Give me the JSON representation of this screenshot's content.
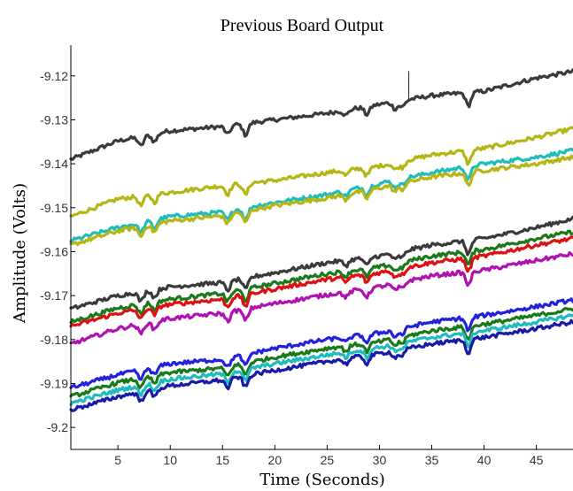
{
  "chart_data": {
    "type": "line",
    "title": "Previous Board Output",
    "xlabel": "Time (Seconds)",
    "ylabel": "Amplitude (Volts)",
    "xlim": [
      0.5,
      48.5
    ],
    "ylim": [
      -9.205,
      -9.113
    ],
    "xticks": [
      5,
      10,
      15,
      20,
      25,
      30,
      35,
      40,
      45
    ],
    "xtick_labels": [
      "5",
      "10",
      "15",
      "20",
      "25",
      "30",
      "35",
      "40",
      "45"
    ],
    "yticks": [
      -9.12,
      -9.13,
      -9.14,
      -9.15,
      -9.16,
      -9.17,
      -9.18,
      -9.19,
      -9.2
    ],
    "ytick_labels": [
      "-9.12",
      "-9.13",
      "-9.14",
      "-9.15",
      "-9.16",
      "-9.17",
      "-9.18",
      "-9.19",
      "-9.2"
    ],
    "grid": false,
    "legend": "none",
    "x": [
      0.5,
      5,
      10,
      15,
      20,
      25,
      30,
      35,
      40,
      45,
      48.5
    ],
    "series": [
      {
        "color": "#3a3a3a",
        "values": [
          -9.139,
          -9.1348,
          -9.1325,
          -9.1315,
          -9.13,
          -9.1285,
          -9.1265,
          -9.1245,
          -9.1235,
          -9.1205,
          -9.119
        ]
      },
      {
        "color": "#b5b514",
        "values": [
          -9.152,
          -9.148,
          -9.1465,
          -9.145,
          -9.1438,
          -9.142,
          -9.1405,
          -9.138,
          -9.1365,
          -9.134,
          -9.132
        ]
      },
      {
        "color": "#1fbcbc",
        "values": [
          -9.1575,
          -9.1545,
          -9.152,
          -9.151,
          -9.1488,
          -9.147,
          -9.1445,
          -9.142,
          -9.14,
          -9.1385,
          -9.137
        ]
      },
      {
        "color": "#b5b514",
        "values": [
          -9.1585,
          -9.1553,
          -9.153,
          -9.1518,
          -9.1495,
          -9.1478,
          -9.1455,
          -9.143,
          -9.1415,
          -9.14,
          -9.1385
        ]
      },
      {
        "color": "#3a3a3a",
        "values": [
          -9.173,
          -9.17,
          -9.168,
          -9.167,
          -9.1648,
          -9.1625,
          -9.161,
          -9.1585,
          -9.157,
          -9.1545,
          -9.1525
        ]
      },
      {
        "color": "#1a7a1a",
        "values": [
          -9.176,
          -9.1728,
          -9.1708,
          -9.1695,
          -9.1672,
          -9.165,
          -9.1635,
          -9.161,
          -9.1595,
          -9.157,
          -9.1555
        ]
      },
      {
        "color": "#dd1111",
        "values": [
          -9.177,
          -9.174,
          -9.172,
          -9.1708,
          -9.1685,
          -9.1663,
          -9.1648,
          -9.1625,
          -9.161,
          -9.1585,
          -9.157
        ]
      },
      {
        "color": "#b012b0",
        "values": [
          -9.181,
          -9.1775,
          -9.1752,
          -9.174,
          -9.1718,
          -9.1698,
          -9.168,
          -9.1655,
          -9.1642,
          -9.162,
          -9.1605
        ]
      },
      {
        "color": "#2222dd",
        "values": [
          -9.191,
          -9.188,
          -9.1855,
          -9.1845,
          -9.182,
          -9.18,
          -9.1785,
          -9.176,
          -9.1745,
          -9.1725,
          -9.171
        ]
      },
      {
        "color": "#1a7a1a",
        "values": [
          -9.193,
          -9.1898,
          -9.1875,
          -9.1865,
          -9.184,
          -9.182,
          -9.1805,
          -9.178,
          -9.1765,
          -9.1745,
          -9.173
        ]
      },
      {
        "color": "#1fbcbc",
        "values": [
          -9.1945,
          -9.1915,
          -9.189,
          -9.1878,
          -9.1855,
          -9.1835,
          -9.1818,
          -9.1795,
          -9.178,
          -9.176,
          -9.1745
        ]
      },
      {
        "color": "#1a1aa8",
        "values": [
          -9.196,
          -9.193,
          -9.1905,
          -9.1892,
          -9.187,
          -9.185,
          -9.1832,
          -9.181,
          -9.1795,
          -9.1775,
          -9.176
        ]
      }
    ]
  }
}
